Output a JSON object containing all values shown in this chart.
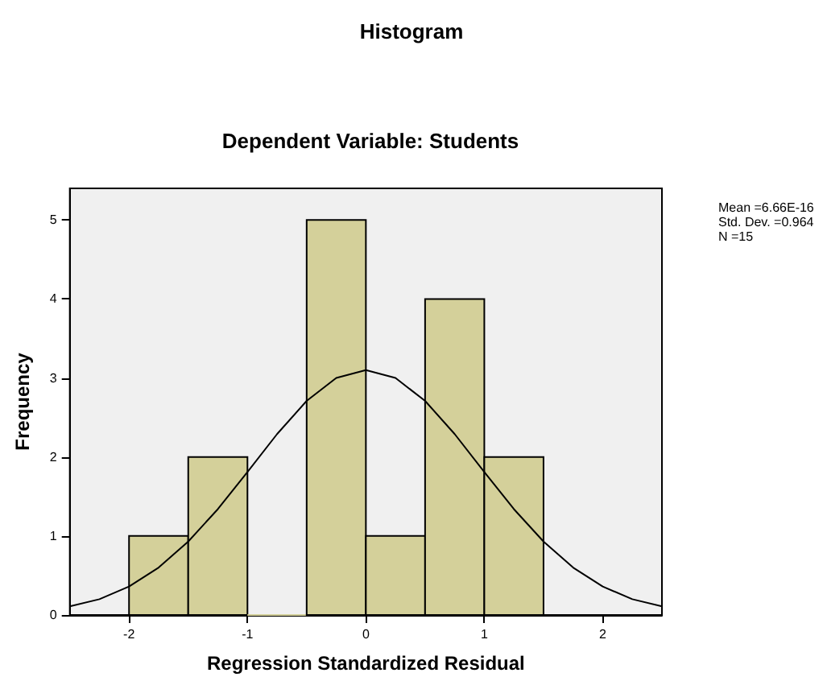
{
  "chart_data": {
    "type": "histogram",
    "title": "Histogram",
    "subtitle": "Dependent Variable: Students",
    "xlabel": "Regression Standardized Residual",
    "ylabel": "Frequency",
    "bins": [
      -2,
      -1.5,
      -1,
      -0.5,
      0,
      0.5,
      1,
      1.5
    ],
    "series": [
      {
        "color": "#d4d09a",
        "values": [
          1,
          2,
          0,
          5,
          1,
          4,
          2
        ]
      },
      {
        "type": "line",
        "color": "#000000",
        "x": [
          -2.5,
          -2.25,
          -2,
          -1.75,
          -1.5,
          -1.25,
          -1,
          -0.75,
          -0.5,
          -0.25,
          0,
          0.25,
          0.5,
          0.75,
          1,
          1.25,
          1.5,
          1.75,
          2,
          2.25,
          2.5
        ],
        "values": [
          0.11,
          0.2,
          0.36,
          0.6,
          0.93,
          1.34,
          1.81,
          2.29,
          2.71,
          3.0,
          3.1,
          3.0,
          2.71,
          2.29,
          1.81,
          1.34,
          0.93,
          0.6,
          0.36,
          0.2,
          0.11
        ]
      }
    ],
    "marker": "none",
    "line_style": "solid",
    "xlim": [
      -2.5,
      2.5
    ],
    "xticks": [
      -2,
      -1,
      0,
      1,
      2
    ],
    "ylim": [
      0,
      5.4
    ],
    "yticks": [
      0,
      1,
      2,
      3,
      4,
      5
    ],
    "grid": false,
    "annotations": [
      "Mean =6.66E-16",
      "Std. Dev. =0.964",
      "N =15"
    ]
  }
}
